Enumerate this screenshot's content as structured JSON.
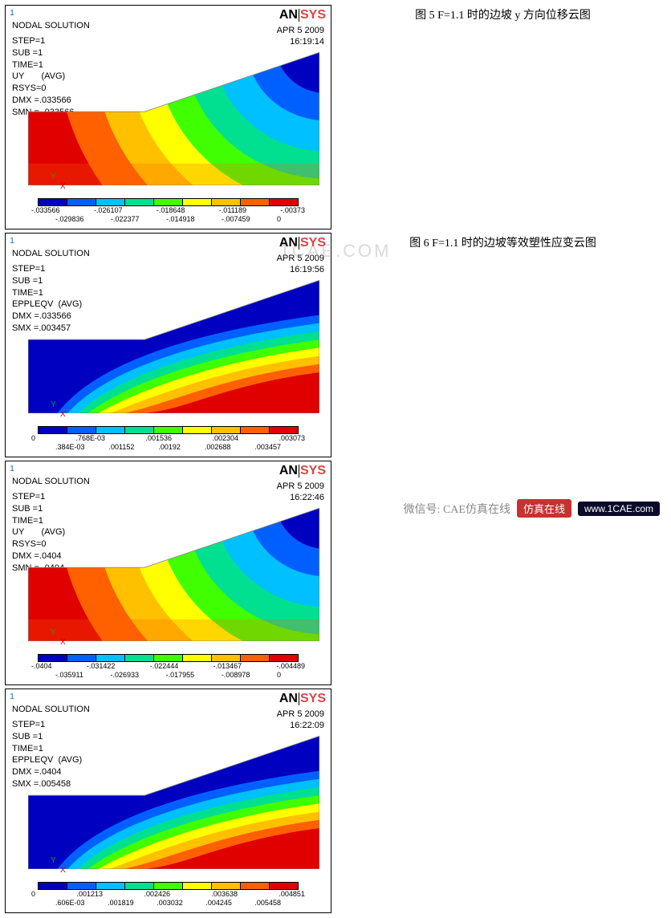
{
  "logo": {
    "an": "AN",
    "sys": "SYS"
  },
  "watermark_mid": "1CAE.COM",
  "watermark_bot": {
    "cn": "微信号: CAE仿真在线",
    "tag": "仿真在线",
    "url": "www.1CAE.com"
  },
  "colors_rainbow": [
    "#0000c0",
    "#0060ff",
    "#00c0ff",
    "#00e090",
    "#40ff00",
    "#ffff00",
    "#ffc000",
    "#ff6000",
    "#e00000"
  ],
  "panels": [
    {
      "title": "NODAL SOLUTION",
      "date": "APR  5 2009",
      "time": "16:19:14",
      "meta": [
        "STEP=1",
        "SUB =1",
        "TIME=1",
        "UY       (AVG)",
        "RSYS=0",
        "DMX =.033566",
        "SMN =-.033566"
      ],
      "type": "uy",
      "legend_top": [
        "-.033566",
        "-.026107",
        "-.018648",
        "-.011189",
        "-.00373"
      ],
      "legend_bot": [
        "-.029836",
        "-.022377",
        "-.014918",
        "-.007459",
        "0"
      ],
      "caption": "图 5 F=1.1 时的边坡 y 方向位移云图"
    },
    {
      "title": "NODAL SOLUTION",
      "date": "APR  5 2009",
      "time": "16:19:56",
      "meta": [
        "STEP=1",
        "SUB =1",
        "TIME=1",
        "EPPLEQV  (AVG)",
        "DMX =.033566",
        "SMX =.003457"
      ],
      "type": "eppleqv",
      "legend_top": [
        "0",
        ".768E-03",
        ".001536",
        ".002304",
        ".003073"
      ],
      "legend_bot": [
        ".384E-03",
        ".001152",
        ".00192",
        ".002688",
        ".003457"
      ],
      "caption": "图 6 F=1.1 时的边坡等效塑性应变云图"
    },
    {
      "title": "NODAL SOLUTION",
      "date": "APR  5 2009",
      "time": "16:22:46",
      "meta": [
        "STEP=1",
        "SUB =1",
        "TIME=1",
        "UY       (AVG)",
        "RSYS=0",
        "DMX =.0404",
        "SMN =-.0404"
      ],
      "type": "uy",
      "legend_top": [
        "-.0404",
        "-.031422",
        "-.022444",
        "-.013467",
        "-.004489"
      ],
      "legend_bot": [
        "-.035911",
        "-.026933",
        "-.017955",
        "-.008978",
        "0"
      ],
      "caption": ""
    },
    {
      "title": "NODAL SOLUTION",
      "date": "APR  5 2009",
      "time": "16:22:09",
      "meta": [
        "STEP=1",
        "SUB =1",
        "TIME=1",
        "EPPLEQV  (AVG)",
        "DMX =.0404",
        "SMX =.005458"
      ],
      "type": "eppleqv",
      "legend_top": [
        "0",
        ".001213",
        ".002426",
        ".003638",
        ".004851"
      ],
      "legend_bot": [
        ".606E-03",
        ".001819",
        ".003032",
        ".004245",
        ".005458"
      ],
      "caption": ""
    }
  ]
}
